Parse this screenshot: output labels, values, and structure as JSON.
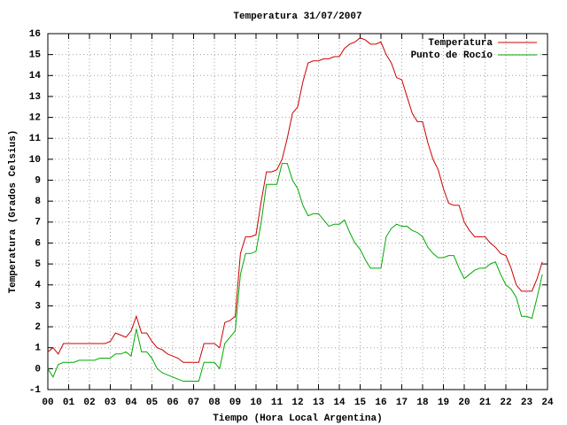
{
  "chart_data": {
    "type": "line",
    "title": "Temperatura 31/07/2007",
    "x_label": "Tiempo (Hora Local Argentina)",
    "y_label": "Temperatura (Grados Celsius)",
    "x": [
      0,
      0.25,
      0.5,
      0.75,
      1,
      1.25,
      1.5,
      1.75,
      2,
      2.25,
      2.5,
      2.75,
      3,
      3.25,
      3.5,
      3.75,
      4,
      4.25,
      4.5,
      4.75,
      5,
      5.25,
      5.5,
      5.75,
      6,
      6.25,
      6.5,
      6.75,
      7,
      7.25,
      7.5,
      7.75,
      8,
      8.25,
      8.5,
      8.75,
      9,
      9.25,
      9.5,
      9.75,
      10,
      10.25,
      10.5,
      10.75,
      11,
      11.25,
      11.5,
      11.75,
      12,
      12.25,
      12.5,
      12.75,
      13,
      13.25,
      13.5,
      13.75,
      14,
      14.25,
      14.5,
      14.75,
      15,
      15.25,
      15.5,
      15.75,
      16,
      16.25,
      16.5,
      16.75,
      17,
      17.25,
      17.5,
      17.75,
      18,
      18.25,
      18.5,
      18.75,
      19,
      19.25,
      19.5,
      19.75,
      20,
      20.25,
      20.5,
      20.75,
      21,
      21.25,
      21.5,
      21.75,
      22,
      22.25,
      22.5,
      22.75,
      23,
      23.25,
      23.5,
      23.75
    ],
    "series": [
      {
        "name": "Temperatura",
        "color": "#cc0000",
        "values": [
          0.8,
          1.0,
          0.7,
          1.2,
          1.2,
          1.2,
          1.2,
          1.2,
          1.2,
          1.2,
          1.2,
          1.2,
          1.3,
          1.7,
          1.6,
          1.5,
          1.8,
          2.5,
          1.7,
          1.7,
          1.3,
          1.0,
          0.9,
          0.7,
          0.6,
          0.5,
          0.3,
          0.3,
          0.3,
          0.3,
          1.2,
          1.2,
          1.2,
          1.0,
          2.2,
          2.3,
          2.5,
          5.5,
          6.3,
          6.3,
          6.4,
          8.0,
          9.4,
          9.4,
          9.5,
          10.0,
          11.0,
          12.2,
          12.5,
          13.7,
          14.6,
          14.7,
          14.7,
          14.8,
          14.8,
          14.9,
          14.9,
          15.3,
          15.5,
          15.6,
          15.8,
          15.7,
          15.5,
          15.5,
          15.6,
          15.0,
          14.6,
          13.9,
          13.8,
          13.0,
          12.2,
          11.8,
          11.8,
          10.8,
          10.0,
          9.5,
          8.6,
          7.9,
          7.8,
          7.8,
          7.0,
          6.6,
          6.3,
          6.3,
          6.3,
          6.0,
          5.8,
          5.5,
          5.4,
          4.8,
          4.0,
          3.7,
          3.7,
          3.7,
          4.3,
          5.1
        ]
      },
      {
        "name": "Punto de Rocío",
        "color": "#00aa00",
        "values": [
          0.0,
          -0.4,
          0.2,
          0.3,
          0.3,
          0.3,
          0.4,
          0.4,
          0.4,
          0.4,
          0.5,
          0.5,
          0.5,
          0.7,
          0.7,
          0.8,
          0.6,
          1.9,
          0.8,
          0.8,
          0.5,
          0.0,
          -0.2,
          -0.3,
          -0.4,
          -0.5,
          -0.6,
          -0.6,
          -0.6,
          -0.6,
          0.3,
          0.3,
          0.3,
          0.0,
          1.2,
          1.5,
          1.8,
          4.5,
          5.5,
          5.5,
          5.6,
          7.0,
          8.8,
          8.8,
          8.8,
          9.8,
          9.8,
          9.0,
          8.6,
          7.8,
          7.3,
          7.4,
          7.4,
          7.1,
          6.8,
          6.9,
          6.9,
          7.1,
          6.5,
          6.0,
          5.7,
          5.2,
          4.8,
          4.8,
          4.8,
          6.3,
          6.7,
          6.9,
          6.8,
          6.8,
          6.6,
          6.5,
          6.3,
          5.8,
          5.5,
          5.3,
          5.3,
          5.4,
          5.4,
          4.8,
          4.3,
          4.5,
          4.7,
          4.8,
          4.8,
          5.0,
          5.1,
          4.5,
          4.0,
          3.8,
          3.4,
          2.5,
          2.5,
          2.4,
          3.4,
          4.5
        ]
      }
    ],
    "xlim": [
      0,
      24
    ],
    "xticks": [
      {
        "value": 0,
        "label": "00"
      },
      {
        "value": 1,
        "label": "01"
      },
      {
        "value": 2,
        "label": "02"
      },
      {
        "value": 3,
        "label": "03"
      },
      {
        "value": 4,
        "label": "04"
      },
      {
        "value": 5,
        "label": "05"
      },
      {
        "value": 6,
        "label": "06"
      },
      {
        "value": 7,
        "label": "07"
      },
      {
        "value": 8,
        "label": "08"
      },
      {
        "value": 9,
        "label": "09"
      },
      10,
      11,
      12,
      13,
      14,
      15,
      16,
      17,
      18,
      19,
      20,
      21,
      22,
      23,
      24
    ],
    "ylim": [
      -1,
      16
    ],
    "yticks": [
      -1,
      0,
      1,
      2,
      3,
      4,
      5,
      6,
      7,
      8,
      9,
      10,
      11,
      12,
      13,
      14,
      15,
      16
    ],
    "grid": true,
    "legend": "top-right"
  }
}
